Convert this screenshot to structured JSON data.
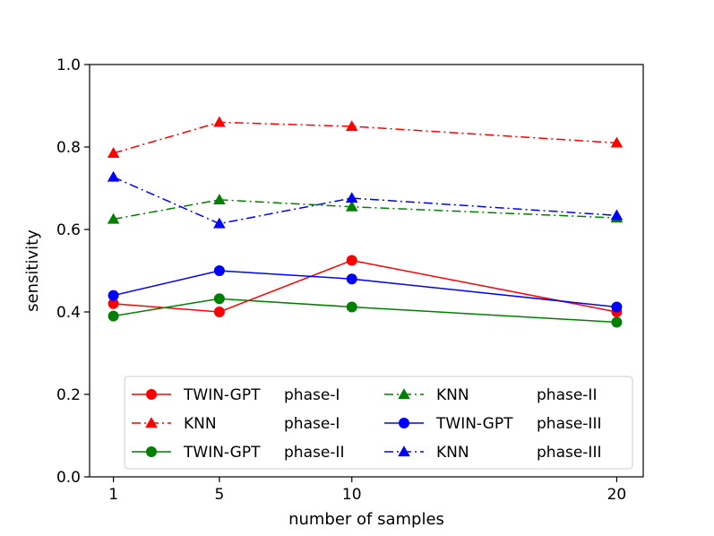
{
  "chart_data": {
    "type": "line",
    "title": "",
    "xlabel": "number of samples",
    "ylabel": "sensitivity",
    "x": [
      1,
      5,
      10,
      20
    ],
    "xticks": [
      "1",
      "5",
      "10",
      "20"
    ],
    "xlim": [
      0.1,
      21.0
    ],
    "ylim": [
      0.0,
      1.0
    ],
    "yticks": [
      "0.0",
      "0.2",
      "0.4",
      "0.6",
      "0.8",
      "1.0"
    ],
    "grid": false,
    "legend_position": "lower-center",
    "series": [
      {
        "name": "TWIN-GPT phase-I",
        "label_left": "TWIN-GPT",
        "label_right": "phase-I",
        "color": "#ff0000",
        "linestyle": "solid",
        "marker": "circle",
        "values": [
          0.42,
          0.4,
          0.525,
          0.4
        ]
      },
      {
        "name": "KNN phase-I",
        "label_left": "KNN",
        "label_right": "phase-I",
        "color": "#ff0000",
        "linestyle": "dashdot",
        "marker": "triangle",
        "values": [
          0.785,
          0.86,
          0.85,
          0.81
        ]
      },
      {
        "name": "TWIN-GPT phase-II",
        "label_left": "TWIN-GPT",
        "label_right": "phase-II",
        "color": "#008000",
        "linestyle": "solid",
        "marker": "circle",
        "values": [
          0.39,
          0.432,
          0.412,
          0.375
        ]
      },
      {
        "name": "KNN phase-II",
        "label_left": "KNN",
        "label_right": "phase-II",
        "color": "#008000",
        "linestyle": "dashdot",
        "marker": "triangle",
        "values": [
          0.625,
          0.672,
          0.655,
          0.628
        ]
      },
      {
        "name": "TWIN-GPT phase-III",
        "label_left": "TWIN-GPT",
        "label_right": "phase-III",
        "color": "#0000ff",
        "linestyle": "solid",
        "marker": "circle",
        "values": [
          0.44,
          0.5,
          0.48,
          0.412
        ]
      },
      {
        "name": "KNN phase-III",
        "label_left": "KNN",
        "label_right": "phase-III",
        "color": "#0000ff",
        "linestyle": "dashdot",
        "marker": "triangle",
        "values": [
          0.727,
          0.614,
          0.676,
          0.634
        ]
      }
    ]
  }
}
